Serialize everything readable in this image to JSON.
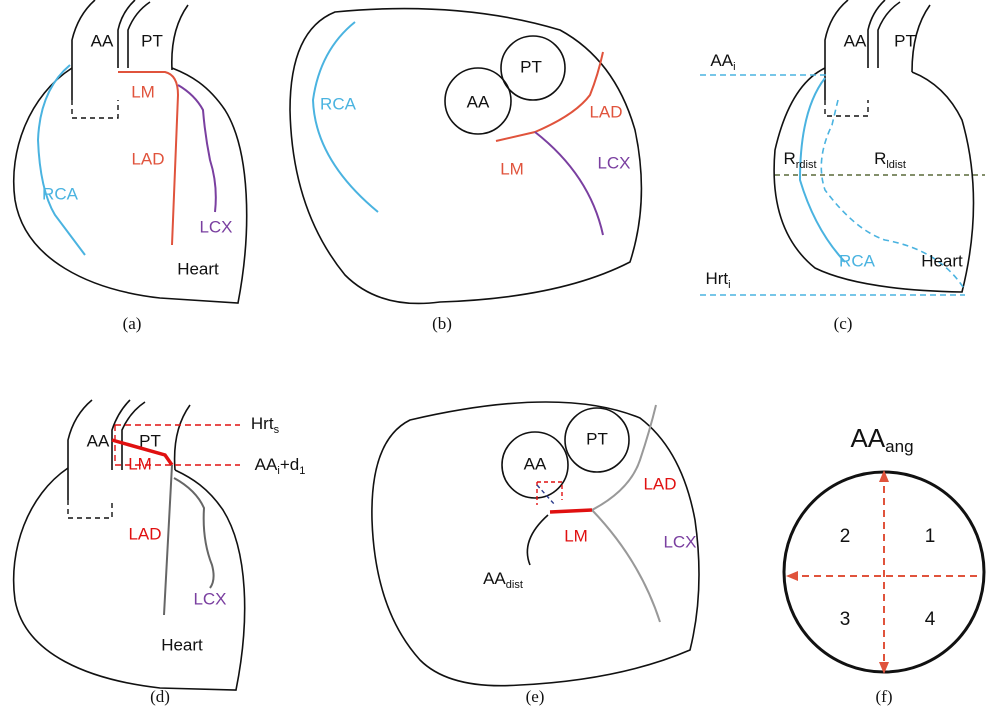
{
  "panels": [
    {
      "caption": "(a)",
      "labels": [
        "AA",
        "PT",
        "LM",
        "LAD",
        "RCA",
        "LCX",
        "Heart"
      ]
    },
    {
      "caption": "(b)",
      "labels": [
        "RCA",
        "AA",
        "PT",
        "LAD",
        "LM",
        "LCX"
      ]
    },
    {
      "caption": "(c)",
      "labels": [
        {
          "base": "AA",
          "sub": "i"
        },
        "AA",
        "PT",
        {
          "base": "R",
          "sub": "rdist"
        },
        {
          "base": "R",
          "sub": "ldist"
        },
        "RCA",
        "Heart",
        {
          "base": "Hrt",
          "sub": "i"
        }
      ]
    },
    {
      "caption": "(d)",
      "labels": [
        "AA",
        "PT",
        {
          "base": "Hrt",
          "sub": "s"
        },
        "LM",
        {
          "base": "AA",
          "sub": "i",
          "base2": "+d",
          "sub2": "1"
        },
        "LAD",
        "LCX",
        "Heart"
      ]
    },
    {
      "caption": "(e)",
      "labels": [
        "AA",
        "PT",
        "LAD",
        "LM",
        "LCX",
        {
          "base": "AA",
          "sub": "dist"
        }
      ]
    },
    {
      "caption": "(f)",
      "labels": [
        {
          "base": "AA",
          "sub": "ang"
        },
        "2",
        "1",
        "3",
        "4"
      ]
    }
  ]
}
